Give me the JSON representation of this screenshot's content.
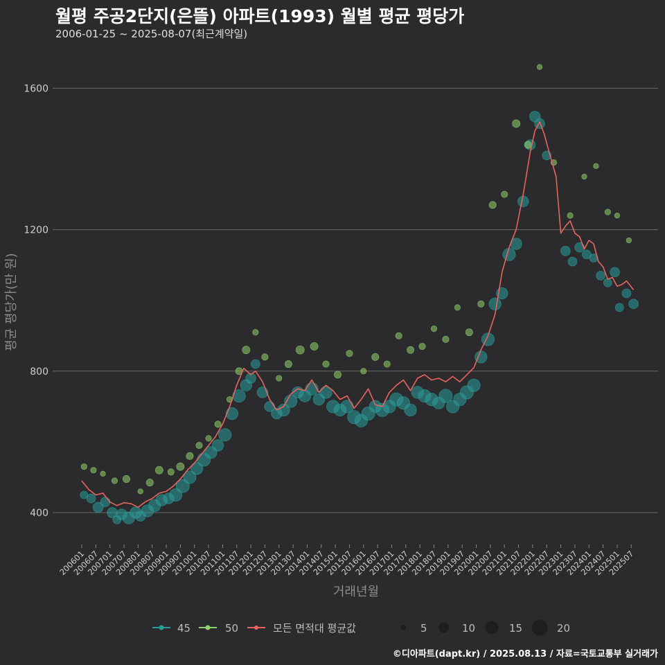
{
  "header": {
    "title": "월평 주공2단지(은뜰) 아파트(1993) 월별 평균 평당가",
    "subtitle": "2006-01-25 ~ 2025-08-07(최근계약일)"
  },
  "footer": {
    "credit": "©디아파트(dapt.kr) / 2025.08.13 / 자료=국토교통부 실거래가"
  },
  "colors": {
    "background": "#2b2b2d",
    "grid": "#6a6a6a",
    "s45": "#2a9d9a",
    "s50": "#8fd16a",
    "avg": "#e8645f"
  },
  "chart_data": {
    "type": "scatter",
    "title": "월평 주공2단지(은뜰) 아파트(1993) 월별 평균 평당가",
    "xlabel": "거래년월",
    "ylabel": "평균 평당가(만 원)",
    "ylim": [
      290,
      1700
    ],
    "yticks": [
      400,
      800,
      1200,
      1600
    ],
    "x_start": "2006-01",
    "x_end": "2025-08",
    "xtick_labels": [
      "200601",
      "200607",
      "200701",
      "200707",
      "200801",
      "200807",
      "200901",
      "200907",
      "201001",
      "201007",
      "201101",
      "201107",
      "201201",
      "201207",
      "201301",
      "201307",
      "201401",
      "201407",
      "201501",
      "201507",
      "201601",
      "201607",
      "201701",
      "201707",
      "201801",
      "201807",
      "201901",
      "201907",
      "202001",
      "202007",
      "202101",
      "202107",
      "202201",
      "202207",
      "202301",
      "202307",
      "202401",
      "202407",
      "202501",
      "202507"
    ],
    "avg_line": {
      "name": "모든 면적대 평균값",
      "keypoints": [
        [
          "2006-01",
          490
        ],
        [
          "2006-04",
          465
        ],
        [
          "2006-07",
          450
        ],
        [
          "2006-10",
          455
        ],
        [
          "2007-01",
          430
        ],
        [
          "2007-04",
          420
        ],
        [
          "2007-07",
          428
        ],
        [
          "2007-10",
          425
        ],
        [
          "2008-01",
          415
        ],
        [
          "2008-04",
          430
        ],
        [
          "2008-07",
          440
        ],
        [
          "2008-10",
          455
        ],
        [
          "2009-01",
          460
        ],
        [
          "2009-04",
          475
        ],
        [
          "2009-07",
          495
        ],
        [
          "2009-10",
          520
        ],
        [
          "2010-01",
          540
        ],
        [
          "2010-04",
          565
        ],
        [
          "2010-07",
          590
        ],
        [
          "2010-10",
          615
        ],
        [
          "2011-01",
          650
        ],
        [
          "2011-04",
          700
        ],
        [
          "2011-07",
          760
        ],
        [
          "2011-10",
          808
        ],
        [
          "2012-01",
          790
        ],
        [
          "2012-03",
          800
        ],
        [
          "2012-06",
          770
        ],
        [
          "2012-09",
          720
        ],
        [
          "2012-12",
          690
        ],
        [
          "2013-03",
          700
        ],
        [
          "2013-06",
          735
        ],
        [
          "2013-09",
          750
        ],
        [
          "2013-12",
          745
        ],
        [
          "2014-03",
          775
        ],
        [
          "2014-06",
          740
        ],
        [
          "2014-09",
          760
        ],
        [
          "2014-12",
          745
        ],
        [
          "2015-03",
          720
        ],
        [
          "2015-06",
          730
        ],
        [
          "2015-09",
          695
        ],
        [
          "2015-12",
          720
        ],
        [
          "2016-03",
          750
        ],
        [
          "2016-06",
          705
        ],
        [
          "2016-09",
          700
        ],
        [
          "2016-12",
          740
        ],
        [
          "2017-03",
          760
        ],
        [
          "2017-06",
          775
        ],
        [
          "2017-09",
          745
        ],
        [
          "2017-12",
          780
        ],
        [
          "2018-03",
          790
        ],
        [
          "2018-06",
          775
        ],
        [
          "2018-09",
          780
        ],
        [
          "2018-12",
          770
        ],
        [
          "2019-03",
          785
        ],
        [
          "2019-06",
          770
        ],
        [
          "2019-09",
          790
        ],
        [
          "2019-12",
          810
        ],
        [
          "2020-03",
          860
        ],
        [
          "2020-06",
          900
        ],
        [
          "2020-09",
          960
        ],
        [
          "2020-12",
          1080
        ],
        [
          "2021-03",
          1150
        ],
        [
          "2021-06",
          1200
        ],
        [
          "2021-09",
          1300
        ],
        [
          "2021-12",
          1420
        ],
        [
          "2022-02",
          1480
        ],
        [
          "2022-04",
          1505
        ],
        [
          "2022-06",
          1470
        ],
        [
          "2022-08",
          1420
        ],
        [
          "2022-11",
          1350
        ],
        [
          "2023-01",
          1190
        ],
        [
          "2023-03",
          1210
        ],
        [
          "2023-05",
          1225
        ],
        [
          "2023-07",
          1190
        ],
        [
          "2023-09",
          1180
        ],
        [
          "2023-11",
          1145
        ],
        [
          "2024-01",
          1170
        ],
        [
          "2024-03",
          1160
        ],
        [
          "2024-05",
          1110
        ],
        [
          "2024-07",
          1095
        ],
        [
          "2024-09",
          1060
        ],
        [
          "2024-11",
          1065
        ],
        [
          "2025-01",
          1040
        ],
        [
          "2025-03",
          1045
        ],
        [
          "2025-05",
          1055
        ],
        [
          "2025-08",
          1030
        ]
      ]
    },
    "series": [
      {
        "name": "45",
        "points": [
          [
            "2006-02",
            450,
            8
          ],
          [
            "2006-05",
            440,
            10
          ],
          [
            "2006-08",
            415,
            12
          ],
          [
            "2006-11",
            430,
            11
          ],
          [
            "2007-02",
            400,
            12
          ],
          [
            "2007-04",
            380,
            9
          ],
          [
            "2007-06",
            395,
            13
          ],
          [
            "2007-09",
            385,
            15
          ],
          [
            "2007-12",
            400,
            14
          ],
          [
            "2008-02",
            390,
            12
          ],
          [
            "2008-05",
            405,
            15
          ],
          [
            "2008-08",
            420,
            15
          ],
          [
            "2008-11",
            435,
            14
          ],
          [
            "2009-02",
            440,
            13
          ],
          [
            "2009-05",
            450,
            16
          ],
          [
            "2009-08",
            475,
            17
          ],
          [
            "2009-11",
            500,
            16
          ],
          [
            "2010-02",
            525,
            15
          ],
          [
            "2010-05",
            550,
            17
          ],
          [
            "2010-08",
            570,
            15
          ],
          [
            "2010-11",
            590,
            14
          ],
          [
            "2011-02",
            620,
            16
          ],
          [
            "2011-05",
            680,
            15
          ],
          [
            "2011-08",
            730,
            16
          ],
          [
            "2011-11",
            760,
            14
          ],
          [
            "2012-01",
            780,
            12
          ],
          [
            "2012-03",
            820,
            10
          ],
          [
            "2012-06",
            740,
            13
          ],
          [
            "2012-09",
            700,
            12
          ],
          [
            "2012-12",
            680,
            13
          ],
          [
            "2013-03",
            690,
            15
          ],
          [
            "2013-06",
            715,
            16
          ],
          [
            "2013-09",
            740,
            14
          ],
          [
            "2013-12",
            730,
            15
          ],
          [
            "2014-03",
            750,
            16
          ],
          [
            "2014-06",
            720,
            14
          ],
          [
            "2014-09",
            740,
            15
          ],
          [
            "2014-12",
            700,
            16
          ],
          [
            "2015-03",
            690,
            15
          ],
          [
            "2015-06",
            700,
            16
          ],
          [
            "2015-09",
            670,
            17
          ],
          [
            "2015-12",
            660,
            16
          ],
          [
            "2016-03",
            680,
            17
          ],
          [
            "2016-06",
            700,
            15
          ],
          [
            "2016-09",
            690,
            17
          ],
          [
            "2016-12",
            700,
            16
          ],
          [
            "2017-03",
            720,
            17
          ],
          [
            "2017-06",
            710,
            16
          ],
          [
            "2017-09",
            690,
            15
          ],
          [
            "2017-12",
            740,
            15
          ],
          [
            "2018-03",
            730,
            16
          ],
          [
            "2018-06",
            720,
            16
          ],
          [
            "2018-09",
            710,
            15
          ],
          [
            "2018-12",
            730,
            17
          ],
          [
            "2019-03",
            700,
            16
          ],
          [
            "2019-06",
            720,
            16
          ],
          [
            "2019-09",
            740,
            17
          ],
          [
            "2019-12",
            760,
            16
          ],
          [
            "2020-03",
            840,
            15
          ],
          [
            "2020-06",
            890,
            16
          ],
          [
            "2020-09",
            990,
            15
          ],
          [
            "2020-12",
            1020,
            14
          ],
          [
            "2021-03",
            1130,
            16
          ],
          [
            "2021-06",
            1160,
            14
          ],
          [
            "2021-09",
            1280,
            13
          ],
          [
            "2021-12",
            1440,
            12
          ],
          [
            "2022-02",
            1520,
            13
          ],
          [
            "2022-04",
            1500,
            12
          ],
          [
            "2022-07",
            1410,
            10
          ],
          [
            "2023-03",
            1140,
            11
          ],
          [
            "2023-06",
            1110,
            10
          ],
          [
            "2023-09",
            1150,
            11
          ],
          [
            "2023-12",
            1130,
            10
          ],
          [
            "2024-03",
            1120,
            9
          ],
          [
            "2024-06",
            1070,
            10
          ],
          [
            "2024-09",
            1050,
            9
          ],
          [
            "2024-12",
            1080,
            11
          ],
          [
            "2025-02",
            980,
            9
          ],
          [
            "2025-05",
            1020,
            10
          ],
          [
            "2025-08",
            990,
            11
          ]
        ]
      },
      {
        "name": "50",
        "points": [
          [
            "2006-02",
            530,
            5
          ],
          [
            "2006-06",
            520,
            5
          ],
          [
            "2006-10",
            510,
            4
          ],
          [
            "2007-03",
            490,
            5
          ],
          [
            "2007-08",
            495,
            7
          ],
          [
            "2008-02",
            460,
            4
          ],
          [
            "2008-06",
            485,
            7
          ],
          [
            "2008-10",
            520,
            8
          ],
          [
            "2009-03",
            515,
            6
          ],
          [
            "2009-07",
            530,
            8
          ],
          [
            "2009-11",
            560,
            7
          ],
          [
            "2010-03",
            590,
            6
          ],
          [
            "2010-07",
            610,
            5
          ],
          [
            "2010-11",
            650,
            6
          ],
          [
            "2011-04",
            720,
            5
          ],
          [
            "2011-08",
            800,
            7
          ],
          [
            "2011-11",
            860,
            8
          ],
          [
            "2012-03",
            910,
            5
          ],
          [
            "2012-07",
            840,
            6
          ],
          [
            "2013-01",
            780,
            5
          ],
          [
            "2013-05",
            820,
            7
          ],
          [
            "2013-10",
            860,
            9
          ],
          [
            "2014-04",
            870,
            8
          ],
          [
            "2014-09",
            820,
            6
          ],
          [
            "2015-02",
            790,
            7
          ],
          [
            "2015-07",
            850,
            6
          ],
          [
            "2016-01",
            800,
            5
          ],
          [
            "2016-06",
            840,
            7
          ],
          [
            "2016-11",
            820,
            6
          ],
          [
            "2017-04",
            900,
            6
          ],
          [
            "2017-09",
            860,
            7
          ],
          [
            "2018-02",
            870,
            6
          ],
          [
            "2018-07",
            920,
            5
          ],
          [
            "2018-12",
            890,
            6
          ],
          [
            "2019-05",
            980,
            5
          ],
          [
            "2019-10",
            910,
            7
          ],
          [
            "2020-03",
            990,
            6
          ],
          [
            "2020-08",
            1270,
            7
          ],
          [
            "2021-01",
            1300,
            6
          ],
          [
            "2021-06",
            1500,
            8
          ],
          [
            "2021-11",
            1440,
            7
          ],
          [
            "2022-04",
            1660,
            4
          ],
          [
            "2022-10",
            1390,
            5
          ],
          [
            "2023-05",
            1240,
            5
          ],
          [
            "2023-11",
            1350,
            4
          ],
          [
            "2024-04",
            1380,
            4
          ],
          [
            "2024-09",
            1250,
            5
          ],
          [
            "2025-01",
            1240,
            4
          ],
          [
            "2025-06",
            1170,
            4
          ]
        ]
      }
    ],
    "legend": {
      "items": [
        "45",
        "50",
        "모든 면적대 평균값"
      ],
      "size_values": [
        "5",
        "10",
        "15",
        "20"
      ]
    }
  }
}
